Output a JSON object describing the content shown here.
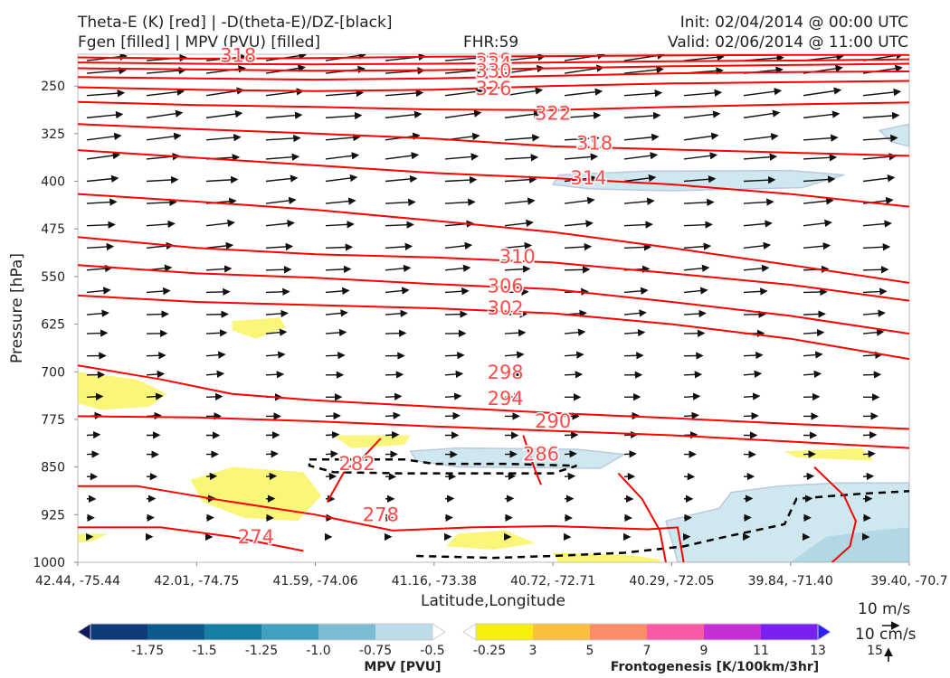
{
  "header": {
    "line1_left": "Theta-E (K) [red] | -D(theta-E)/DZ-[black]",
    "line2_left": "Fgen [filled] | MPV (PVU) [filled]",
    "fhr": "FHR:59",
    "init": "Init: 02/04/2014 @ 00:00 UTC",
    "valid": "Valid: 02/06/2014 @ 11:00 UTC"
  },
  "chart_data": {
    "type": "cross-section",
    "ylabel": "Pressure [hPa]",
    "xlabel": "Latitude,Longitude",
    "ylim": [
      1000,
      200
    ],
    "y_ticks": [
      250,
      325,
      400,
      475,
      550,
      625,
      700,
      775,
      850,
      925,
      1000
    ],
    "x_ticks": [
      "42.44, -75.44",
      "42.01, -74.75",
      "41.59, -74.06",
      "41.16, -73.38",
      "40.72, -72.71",
      "40.29, -72.05",
      "39.84, -71.40",
      "39.40, -70.7"
    ],
    "theta_e_labels": [
      {
        "value": "318",
        "x": 1.35,
        "p": 202
      },
      {
        "value": "338",
        "x": 3.5,
        "p": 210
      },
      {
        "value": "334",
        "x": 3.5,
        "p": 215
      },
      {
        "value": "330",
        "x": 3.5,
        "p": 226
      },
      {
        "value": "326",
        "x": 3.5,
        "p": 254
      },
      {
        "value": "322",
        "x": 4.0,
        "p": 293
      },
      {
        "value": "318",
        "x": 4.35,
        "p": 340
      },
      {
        "value": "314",
        "x": 4.3,
        "p": 395
      },
      {
        "value": "310",
        "x": 3.7,
        "p": 519
      },
      {
        "value": "306",
        "x": 3.6,
        "p": 565
      },
      {
        "value": "302",
        "x": 3.6,
        "p": 600
      },
      {
        "value": "298",
        "x": 3.6,
        "p": 701
      },
      {
        "value": "294",
        "x": 3.6,
        "p": 742
      },
      {
        "value": "290",
        "x": 4.0,
        "p": 778
      },
      {
        "value": "286",
        "x": 3.9,
        "p": 830
      },
      {
        "value": "282",
        "x": 2.35,
        "p": 845
      },
      {
        "value": "278",
        "x": 2.55,
        "p": 925
      },
      {
        "value": "274",
        "x": 1.5,
        "p": 960
      }
    ],
    "mpv_colorbar": {
      "label": "MPV [PVU]",
      "ticks": [
        "-1.75",
        "-1.5",
        "-1.25",
        "-1.0",
        "-0.75",
        "-0.5",
        "-0.25"
      ],
      "colors": [
        "#0a1a5c",
        "#0d3a78",
        "#0d5a8c",
        "#167fa3",
        "#3fa1bf",
        "#7bbcd2",
        "#bcdde8",
        "#ffffff"
      ]
    },
    "fgen_colorbar": {
      "label": "Frontogenesis [K/100km/3hr]",
      "ticks": [
        "3",
        "5",
        "7",
        "9",
        "11",
        "13",
        "15"
      ],
      "colors": [
        "#ffffff",
        "#f6ef0c",
        "#fbbf3f",
        "#fb8c6a",
        "#f85aa4",
        "#c530d6",
        "#7a20f0",
        "#2a1ff5"
      ]
    }
  },
  "wind_key": {
    "horizontal": "10 m/s",
    "vertical": "10 cm/s"
  },
  "colors": {
    "theta_e": "#ff0000",
    "theta_e_label": "#ff4a4a",
    "stability": "#000000",
    "wind": "#111111"
  }
}
